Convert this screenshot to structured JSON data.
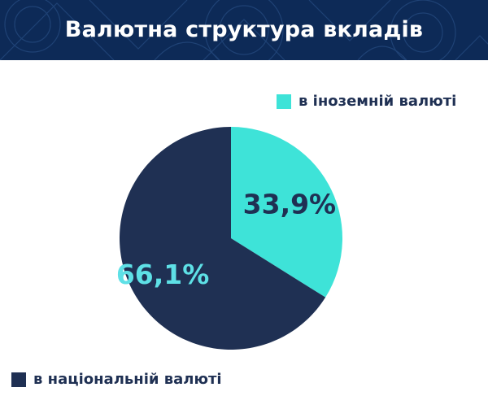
{
  "header": {
    "title": "Валютна структура вкладів",
    "background_color": "#0d2a57",
    "pattern_color": "#1f4275"
  },
  "chart_data": {
    "type": "pie",
    "title": "Валютна структура вкладів",
    "slices": [
      {
        "label": "в іноземній валюті",
        "value": 33.9,
        "display": "33,9%",
        "color": "#3ee3d8",
        "label_color": "#1f3053"
      },
      {
        "label": "в національній валюті",
        "value": 66.1,
        "display": "66,1%",
        "color": "#1f3053",
        "label_color": "#5ee0e6"
      }
    ],
    "start": "12 o'clock",
    "direction": "clockwise"
  },
  "legend": {
    "items": [
      {
        "label": "в іноземній валюті",
        "color": "#3ee3d8"
      },
      {
        "label": "в національній валюті",
        "color": "#1f3053"
      }
    ]
  }
}
